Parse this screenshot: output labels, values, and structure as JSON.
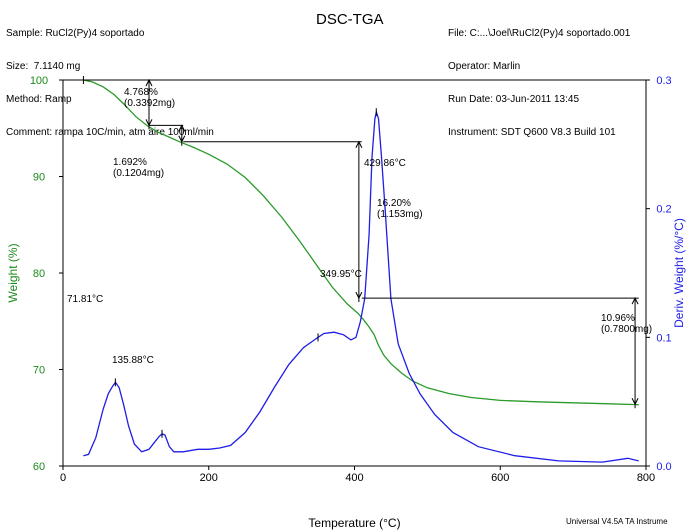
{
  "header": {
    "left": [
      "Sample: RuCl2(Py)4 soportado",
      "Size:  7.1140 mg",
      "Method: Ramp",
      "Comment: rampa 10C/min, atm aire 100ml/min"
    ],
    "right": [
      "File: C:...\\Joel\\RuCl2(Py)4 soportado.001",
      "Operator: Marlin",
      "Run Date: 03-Jun-2011 13:45",
      "Instrument: SDT Q600 V8.3 Build 101"
    ]
  },
  "footer": "Universal V4.5A TA Instrume",
  "colors": {
    "weight": "#2a9a2a",
    "deriv": "#1e1ee6",
    "axis_right": "#1e1ee6",
    "axis_left": "#1c8a1c"
  },
  "chart_data": {
    "type": "line",
    "title": "DSC-TGA",
    "xlabel": "Temperature (°C)",
    "ylabel": "Weight (%)",
    "y2label": "Deriv. Weight (%/°C)",
    "xlim": [
      0,
      800
    ],
    "ylim": [
      60,
      100
    ],
    "y2lim": [
      0.0,
      0.3
    ],
    "xticks": [
      "0",
      "200",
      "400",
      "600",
      "800"
    ],
    "yticks": [
      "60",
      "70",
      "80",
      "90",
      "100"
    ],
    "y2ticks": [
      "0.0",
      "0.1",
      "0.2",
      "0.3"
    ],
    "grid": false,
    "series": [
      {
        "name": "Weight",
        "axis": "left",
        "x": [
          28,
          40,
          55,
          70,
          85,
          100,
          115,
          130,
          145,
          160,
          180,
          200,
          225,
          250,
          275,
          300,
          325,
          350,
          370,
          390,
          405,
          412,
          420,
          427,
          433,
          440,
          450,
          465,
          480,
          500,
          530,
          560,
          600,
          650,
          700,
          750,
          790
        ],
        "y": [
          100,
          99.8,
          99.3,
          98.5,
          97.4,
          96.2,
          95.3,
          94.6,
          94.1,
          93.6,
          93.0,
          92.3,
          91.3,
          89.9,
          88.0,
          85.8,
          83.3,
          80.6,
          78.5,
          76.8,
          75.8,
          75.2,
          74.4,
          73.6,
          72.5,
          71.5,
          70.6,
          69.6,
          68.8,
          68.1,
          67.5,
          67.1,
          66.8,
          66.65,
          66.55,
          66.45,
          66.35
        ]
      },
      {
        "name": "Deriv. Weight",
        "axis": "right",
        "x": [
          28,
          35,
          45,
          55,
          62,
          68,
          72,
          77,
          83,
          90,
          98,
          108,
          118,
          125,
          132,
          136,
          140,
          146,
          152,
          165,
          185,
          200,
          215,
          230,
          250,
          270,
          290,
          310,
          330,
          345,
          350,
          358,
          372,
          385,
          395,
          402,
          408,
          414,
          420,
          424,
          428,
          430,
          433,
          437,
          442,
          450,
          460,
          475,
          490,
          510,
          535,
          570,
          620,
          680,
          740,
          775,
          790
        ],
        "y": [
          0.008,
          0.009,
          0.022,
          0.044,
          0.056,
          0.062,
          0.065,
          0.061,
          0.048,
          0.031,
          0.017,
          0.011,
          0.013,
          0.018,
          0.023,
          0.025,
          0.024,
          0.015,
          0.011,
          0.011,
          0.013,
          0.013,
          0.014,
          0.016,
          0.026,
          0.042,
          0.061,
          0.079,
          0.092,
          0.098,
          0.1,
          0.103,
          0.104,
          0.102,
          0.098,
          0.1,
          0.112,
          0.13,
          0.18,
          0.24,
          0.27,
          0.275,
          0.27,
          0.24,
          0.2,
          0.13,
          0.095,
          0.072,
          0.056,
          0.04,
          0.026,
          0.015,
          0.008,
          0.004,
          0.003,
          0.006,
          0.004
        ]
      }
    ],
    "annotations": [
      {
        "lines": [
          "4.768%",
          "(0.3392mg)"
        ]
      },
      {
        "lines": [
          "1.692%",
          "(0.1204mg)"
        ]
      },
      {
        "lines": [
          "16.20%",
          "(1.153mg)"
        ]
      },
      {
        "lines": [
          "10.96%",
          "(0.7800mg)"
        ]
      },
      {
        "lines": [
          "71.81°C"
        ]
      },
      {
        "lines": [
          "135.88°C"
        ]
      },
      {
        "lines": [
          "349.95°C"
        ]
      },
      {
        "lines": [
          "429.86°C"
        ]
      }
    ]
  }
}
